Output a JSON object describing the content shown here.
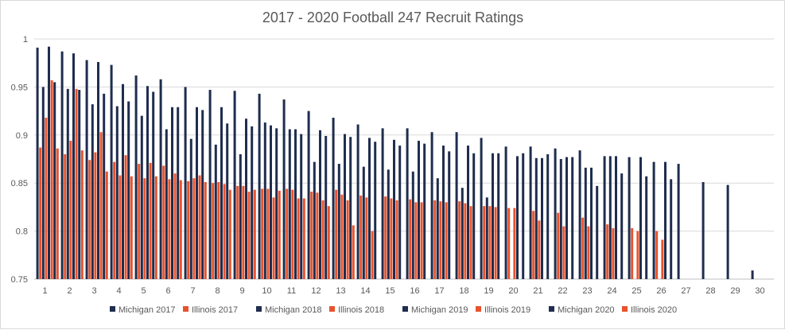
{
  "chart_data": {
    "type": "bar",
    "title": "2017 - 2020 Football 247 Recruit Ratings",
    "xlabel": "",
    "ylabel": "",
    "ylim": [
      0.75,
      1.0
    ],
    "yticks": [
      "0.75",
      "0.8",
      "0.85",
      "0.9",
      "0.95",
      "1"
    ],
    "ytick_values": [
      0.75,
      0.8,
      0.85,
      0.9,
      0.95,
      1.0
    ],
    "grid": true,
    "legend_position": "bottom",
    "categories": [
      "1",
      "2",
      "3",
      "4",
      "5",
      "6",
      "7",
      "8",
      "9",
      "10",
      "11",
      "12",
      "13",
      "14",
      "15",
      "16",
      "17",
      "18",
      "19",
      "20",
      "21",
      "22",
      "23",
      "24",
      "25",
      "26",
      "27",
      "28",
      "29",
      "30"
    ],
    "series": [
      {
        "name": "Michigan 2017",
        "color": "#1f2d4e",
        "values": [
          0.991,
          0.987,
          0.978,
          0.973,
          0.962,
          0.958,
          0.95,
          0.947,
          0.946,
          0.943,
          0.937,
          0.925,
          0.918,
          0.911,
          0.907,
          0.907,
          0.903,
          0.903,
          0.897,
          0.888,
          0.888,
          0.886,
          0.884,
          0.878,
          0.877,
          0.872,
          0.87,
          0.851,
          0.848,
          0.759
        ]
      },
      {
        "name": "Illinois 2017",
        "color": "#e8532d",
        "values": [
          0.887,
          0.88,
          0.874,
          0.872,
          0.87,
          0.868,
          0.852,
          0.85,
          0.847,
          0.844,
          0.844,
          0.841,
          0.843,
          0.837,
          0.836,
          0.833,
          0.832,
          0.831,
          0.826,
          0.824,
          0.821,
          0.819,
          0.814,
          0.807,
          0.803,
          0.8,
          null,
          null,
          null,
          null
        ]
      },
      {
        "name": "Michigan 2018",
        "color": "#1f2d4e",
        "values": [
          0.95,
          0.948,
          0.932,
          0.93,
          0.92,
          0.906,
          0.896,
          0.89,
          0.88,
          0.913,
          0.906,
          0.872,
          0.87,
          0.867,
          0.864,
          0.862,
          0.855,
          0.845,
          0.835,
          null,
          0.876,
          0.875,
          0.866,
          0.878,
          null,
          null,
          null,
          null,
          null,
          null
        ]
      },
      {
        "name": "Illinois 2018",
        "color": "#e8532d",
        "values": [
          0.918,
          0.894,
          0.882,
          0.858,
          0.855,
          0.854,
          0.855,
          0.851,
          0.847,
          0.844,
          0.843,
          0.84,
          0.838,
          0.835,
          0.834,
          0.83,
          0.831,
          0.829,
          0.826,
          0.824,
          0.811,
          0.805,
          0.805,
          0.803,
          0.8,
          0.791,
          null,
          null,
          null,
          null
        ]
      },
      {
        "name": "Michigan 2019",
        "color": "#1f2d4e",
        "values": [
          0.992,
          0.985,
          0.976,
          0.953,
          0.951,
          0.929,
          0.929,
          0.929,
          0.917,
          0.91,
          0.906,
          0.905,
          0.901,
          0.897,
          0.895,
          0.894,
          0.889,
          0.889,
          0.881,
          0.878,
          0.876,
          0.877,
          0.866,
          0.878,
          0.877,
          0.872,
          null,
          null,
          null,
          null
        ]
      },
      {
        "name": "Illinois 2019",
        "color": "#e8532d",
        "values": [
          0.957,
          0.948,
          0.903,
          0.879,
          0.871,
          0.86,
          0.858,
          0.849,
          0.841,
          0.835,
          0.834,
          0.832,
          0.832,
          0.8,
          0.832,
          0.83,
          0.83,
          0.826,
          0.825,
          null,
          null,
          null,
          null,
          null,
          null,
          null,
          null,
          null,
          null,
          null
        ]
      },
      {
        "name": "Michigan 2020",
        "color": "#1f2d4e",
        "values": [
          0.955,
          0.947,
          0.943,
          0.935,
          0.945,
          0.929,
          0.926,
          0.912,
          0.909,
          0.907,
          0.901,
          0.899,
          0.898,
          0.893,
          0.889,
          0.891,
          0.883,
          0.881,
          0.881,
          0.881,
          0.88,
          0.877,
          0.847,
          0.86,
          0.857,
          0.854,
          null,
          null,
          null,
          null
        ]
      },
      {
        "name": "Illinois 2020",
        "color": "#e8532d",
        "values": [
          0.886,
          0.884,
          0.862,
          0.857,
          0.857,
          0.853,
          0.851,
          0.843,
          0.843,
          0.842,
          0.834,
          0.826,
          0.806,
          null,
          null,
          null,
          null,
          null,
          null,
          null,
          null,
          null,
          null,
          null,
          null,
          null,
          null,
          null,
          null,
          null
        ]
      }
    ]
  }
}
